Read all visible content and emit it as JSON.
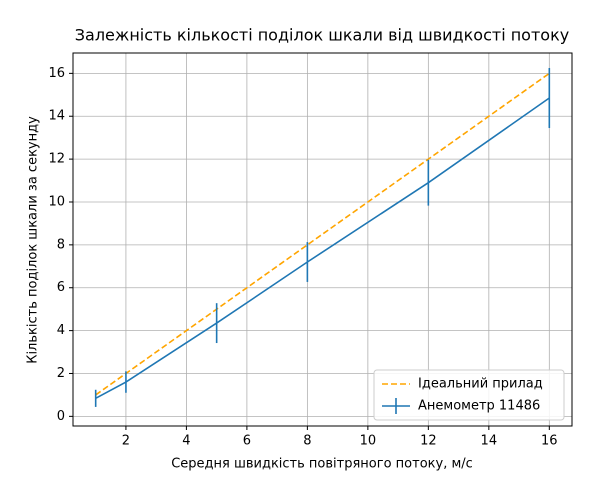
{
  "chart_data": {
    "type": "line",
    "title": "Залежність кількості поділок шкали від швидкості потоку",
    "xlabel": "Середня швидкість повітряного потоку, м/с",
    "ylabel": "Кількість поділок шкали за секунду",
    "x": [
      1,
      2,
      5,
      8,
      12,
      16
    ],
    "series": [
      {
        "name": "Ідеальний прилад",
        "color": "#ffa500",
        "linestyle": "dashed",
        "values": [
          1,
          2,
          5,
          8,
          12,
          16
        ]
      },
      {
        "name": "Анемометр 11486",
        "color": "#1f77b4",
        "linestyle": "solid",
        "values": [
          0.84,
          1.6,
          4.35,
          7.2,
          10.9,
          14.85
        ],
        "errors": [
          0.4,
          0.5,
          0.93,
          0.93,
          1.07,
          1.4
        ]
      }
    ],
    "xlim": [
      0.25,
      16.75
    ],
    "xticks": [
      2,
      4,
      6,
      8,
      10,
      12,
      14,
      16
    ],
    "ylim": [
      -0.45,
      16.95
    ],
    "yticks": [
      0,
      2,
      4,
      6,
      8,
      10,
      12,
      14,
      16
    ],
    "grid": true,
    "legend": "lower right"
  }
}
